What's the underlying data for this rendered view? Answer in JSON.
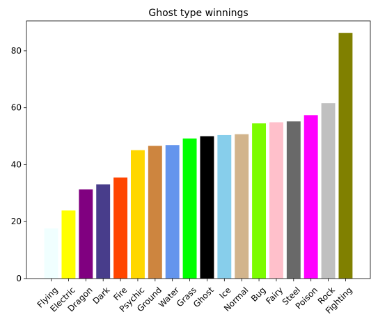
{
  "chart_data": {
    "type": "bar",
    "title": "Ghost type winnings",
    "xlabel": "",
    "ylabel": "",
    "ylim": [
      0,
      90.5
    ],
    "yticks": [
      0,
      20,
      40,
      60,
      80
    ],
    "grid": false,
    "categories": [
      "Flying",
      "Electric",
      "Dragon",
      "Dark",
      "Fire",
      "Psychic",
      "Ground",
      "Water",
      "Grass",
      "Ghost",
      "Ice",
      "Normal",
      "Bug",
      "Fairy",
      "Steel",
      "Poison",
      "Rock",
      "Fighting"
    ],
    "values": [
      17.6,
      23.9,
      31.3,
      33.1,
      35.5,
      45.1,
      46.6,
      46.9,
      49.2,
      50.0,
      50.4,
      50.7,
      54.5,
      54.9,
      55.2,
      57.4,
      61.6,
      86.3
    ],
    "colors": [
      "#f0ffff",
      "#ffff00",
      "#800080",
      "#483d8b",
      "#ff4500",
      "#ffd700",
      "#cd853f",
      "#6495ed",
      "#00ff00",
      "#000000",
      "#87ceeb",
      "#d2b48c",
      "#7cfc00",
      "#ffc0cb",
      "#696969",
      "#ff00ff",
      "#c0c0c0",
      "#808000"
    ]
  }
}
